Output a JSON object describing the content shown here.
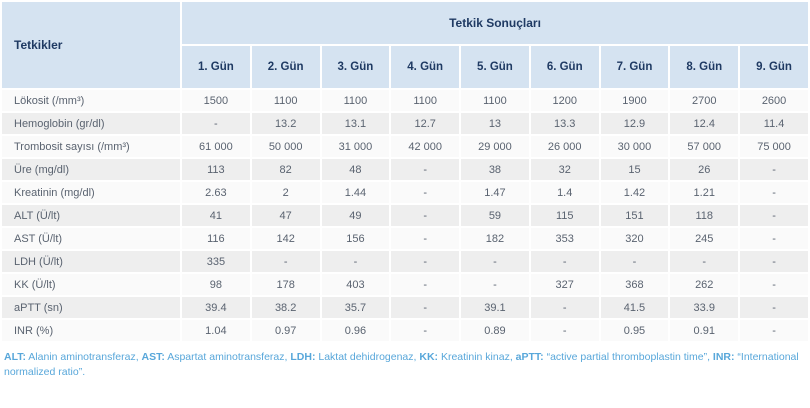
{
  "table": {
    "corner_header": "Tetkikler",
    "group_header": "Tetkik Sonuçları",
    "day_headers": [
      "1. Gün",
      "2. Gün",
      "3. Gün",
      "4. Gün",
      "5. Gün",
      "6. Gün",
      "7. Gün",
      "8. Gün",
      "9. Gün"
    ],
    "rows": [
      {
        "label": "Lökosit (/mm³)",
        "values": [
          "1500",
          "1100",
          "1100",
          "1100",
          "1100",
          "1200",
          "1900",
          "2700",
          "2600"
        ]
      },
      {
        "label": "Hemoglobin (gr/dl)",
        "values": [
          "-",
          "13.2",
          "13.1",
          "12.7",
          "13",
          "13.3",
          "12.9",
          "12.4",
          "11.4"
        ]
      },
      {
        "label": "Trombosit sayısı (/mm³)",
        "values": [
          "61 000",
          "50 000",
          "31 000",
          "42 000",
          "29 000",
          "26 000",
          "30 000",
          "57 000",
          "75 000"
        ]
      },
      {
        "label": "Üre (mg/dl)",
        "values": [
          "113",
          "82",
          "48",
          "-",
          "38",
          "32",
          "15",
          "26",
          "-"
        ]
      },
      {
        "label": "Kreatinin (mg/dl)",
        "values": [
          "2.63",
          "2",
          "1.44",
          "-",
          "1.47",
          "1.4",
          "1.42",
          "1.21",
          "-"
        ]
      },
      {
        "label": "ALT (Ü/lt)",
        "values": [
          "41",
          "47",
          "49",
          "-",
          "59",
          "115",
          "151",
          "118",
          "-"
        ]
      },
      {
        "label": "AST (Ü/lt)",
        "values": [
          "116",
          "142",
          "156",
          "-",
          "182",
          "353",
          "320",
          "245",
          "-"
        ]
      },
      {
        "label": "LDH (Ü/lt)",
        "values": [
          "335",
          "-",
          "-",
          "-",
          "-",
          "-",
          "-",
          "-",
          "-"
        ]
      },
      {
        "label": "KK (Ü/lt)",
        "values": [
          "98",
          "178",
          "403",
          "-",
          "-",
          "327",
          "368",
          "262",
          "-"
        ]
      },
      {
        "label": "aPTT (sn)",
        "values": [
          "39.4",
          "38.2",
          "35.7",
          "-",
          "39.1",
          "-",
          "41.5",
          "33.9",
          "-"
        ]
      },
      {
        "label": "INR (%)",
        "values": [
          "1.04",
          "0.97",
          "0.96",
          "-",
          "0.89",
          "-",
          "0.95",
          "0.91",
          "-"
        ]
      }
    ]
  },
  "footnote": {
    "segments": [
      {
        "abbr": "ALT:",
        "text": " Alanin aminotransferaz, "
      },
      {
        "abbr": "AST:",
        "text": " Aspartat aminotransferaz, "
      },
      {
        "abbr": "LDH:",
        "text": " Laktat dehidrogenaz, "
      },
      {
        "abbr": "KK:",
        "text": " Kreatinin kinaz, "
      },
      {
        "abbr": "aPTT:",
        "text": " “active partial thromboplastin time”, "
      },
      {
        "abbr": "INR:",
        "text": " “International normalized ratio”."
      }
    ]
  },
  "colors": {
    "header_bg": "#d5e3f1",
    "header_text": "#1f3a63",
    "row_bg": "#fafafa",
    "row_alt_bg": "#eeeeee",
    "cell_text": "#5a6370",
    "footnote_text": "#58a7da"
  }
}
